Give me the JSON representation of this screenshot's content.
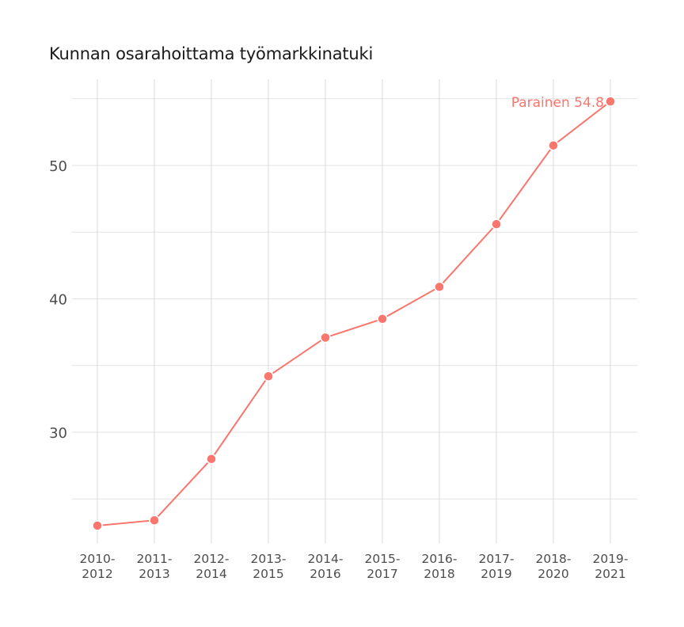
{
  "chart_data": {
    "type": "line",
    "title": "Kunnan osarahoittama työmarkkinatuki",
    "xlabel": "",
    "ylabel": "",
    "categories": [
      "2010-2012",
      "2011-2013",
      "2012-2014",
      "2013-2015",
      "2014-2016",
      "2015-2017",
      "2016-2018",
      "2017-2019",
      "2018-2020",
      "2019-2021"
    ],
    "series": [
      {
        "name": "Parainen",
        "color": "#f8766d",
        "values": [
          23.0,
          23.4,
          28.0,
          34.2,
          37.1,
          38.5,
          40.9,
          45.6,
          51.5,
          54.8
        ]
      }
    ],
    "yticks": [
      30,
      40,
      50
    ],
    "ylim": [
      22.5,
      56.3
    ],
    "grid": true,
    "legend": "none",
    "annotation": {
      "text": "Parainen 54.8",
      "series": "Parainen",
      "at": "2019-2021"
    }
  },
  "title": "Kunnan osarahoittama työmarkkinatuki",
  "x_labels": [
    [
      "2010-",
      "2012"
    ],
    [
      "2011-",
      "2013"
    ],
    [
      "2012-",
      "2014"
    ],
    [
      "2013-",
      "2015"
    ],
    [
      "2014-",
      "2016"
    ],
    [
      "2015-",
      "2017"
    ],
    [
      "2016-",
      "2018"
    ],
    [
      "2017-",
      "2019"
    ],
    [
      "2018-",
      "2020"
    ],
    [
      "2019-",
      "2021"
    ]
  ],
  "y_labels": [
    "30",
    "40",
    "50"
  ],
  "end_label": "Parainen 54.8"
}
